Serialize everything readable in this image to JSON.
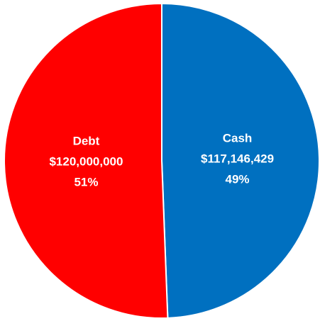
{
  "chart_data": {
    "type": "pie",
    "categories": [
      "Cash",
      "Debt"
    ],
    "values": [
      117146429,
      120000000
    ],
    "value_labels": [
      "$117,146,429",
      "$120,000,000"
    ],
    "percentages": [
      49,
      51
    ],
    "percentage_labels": [
      "49%",
      "51%"
    ],
    "colors": [
      "#0070c0",
      "#ff0000"
    ],
    "start_angle": 0,
    "direction": "clockwise"
  }
}
